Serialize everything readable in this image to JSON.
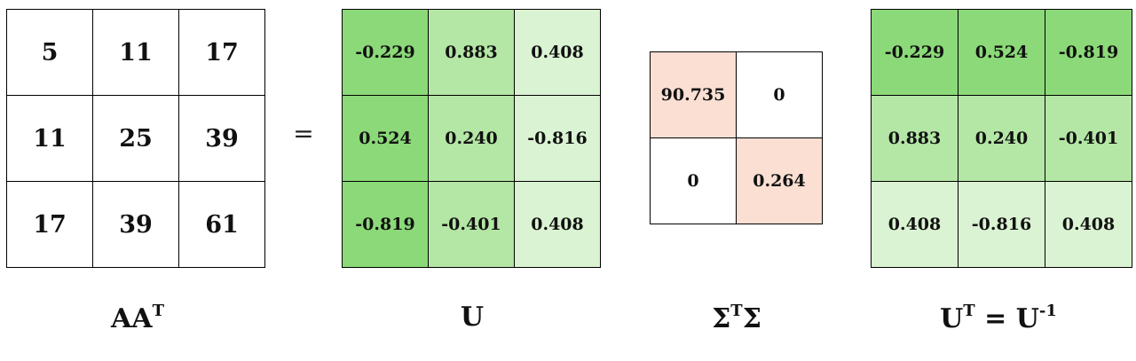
{
  "aat": {
    "values": [
      "5",
      "11",
      "17",
      "11",
      "25",
      "39",
      "17",
      "39",
      "61"
    ],
    "label_base": "AA",
    "label_sup": "T"
  },
  "u": {
    "values": [
      "-0.229",
      "0.883",
      "0.408",
      "0.524",
      "0.240",
      "-0.816",
      "-0.819",
      "-0.401",
      "0.408"
    ],
    "label": "U"
  },
  "equals": "=",
  "sigma": {
    "values": [
      "90.735",
      "0",
      "0",
      "0.264"
    ],
    "label_left": "Σ",
    "label_sup": "T",
    "label_right": "Σ"
  },
  "ut": {
    "values": [
      "-0.229",
      "0.524",
      "-0.819",
      "0.883",
      "0.240",
      "-0.401",
      "0.408",
      "-0.816",
      "0.408"
    ],
    "label_base": "U",
    "label_sup": "T",
    "label_mid": " = U",
    "label_sup2": "-1"
  },
  "colors": {
    "green_dark": "#8bd978",
    "green_mid": "#b4e6a5",
    "green_light": "#daf3d2",
    "peach": "#fadfd2",
    "white": "#ffffff"
  }
}
